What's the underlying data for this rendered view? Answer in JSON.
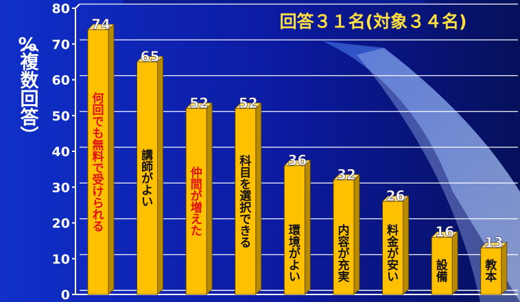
{
  "chart_data": {
    "type": "bar",
    "title": "",
    "annotation": "回答３１名(対象３４名)",
    "ylabel_unit": "%",
    "ylabel": "（複数回答）",
    "xlabel": "",
    "ylim": [
      0,
      80
    ],
    "yticks": [
      0,
      10,
      20,
      30,
      40,
      50,
      60,
      70,
      80
    ],
    "grid": true,
    "categories": [
      "何回でも無料で受けられる",
      "講師がよい",
      "仲間が増えた",
      "科目を選択できる",
      "環境がよい",
      "内容が充実",
      "料金が安い",
      "設備",
      "教本"
    ],
    "values": [
      74,
      65,
      52,
      52,
      36,
      32,
      26,
      16,
      13
    ],
    "category_colors": [
      "#e01010",
      "#101010",
      "#e01010",
      "#101010",
      "#101010",
      "#101010",
      "#101010",
      "#101010",
      "#101010"
    ],
    "bar_color": "#ffc000",
    "bar_side_color": "#b88a00",
    "bar_top_color": "#ffe070"
  }
}
